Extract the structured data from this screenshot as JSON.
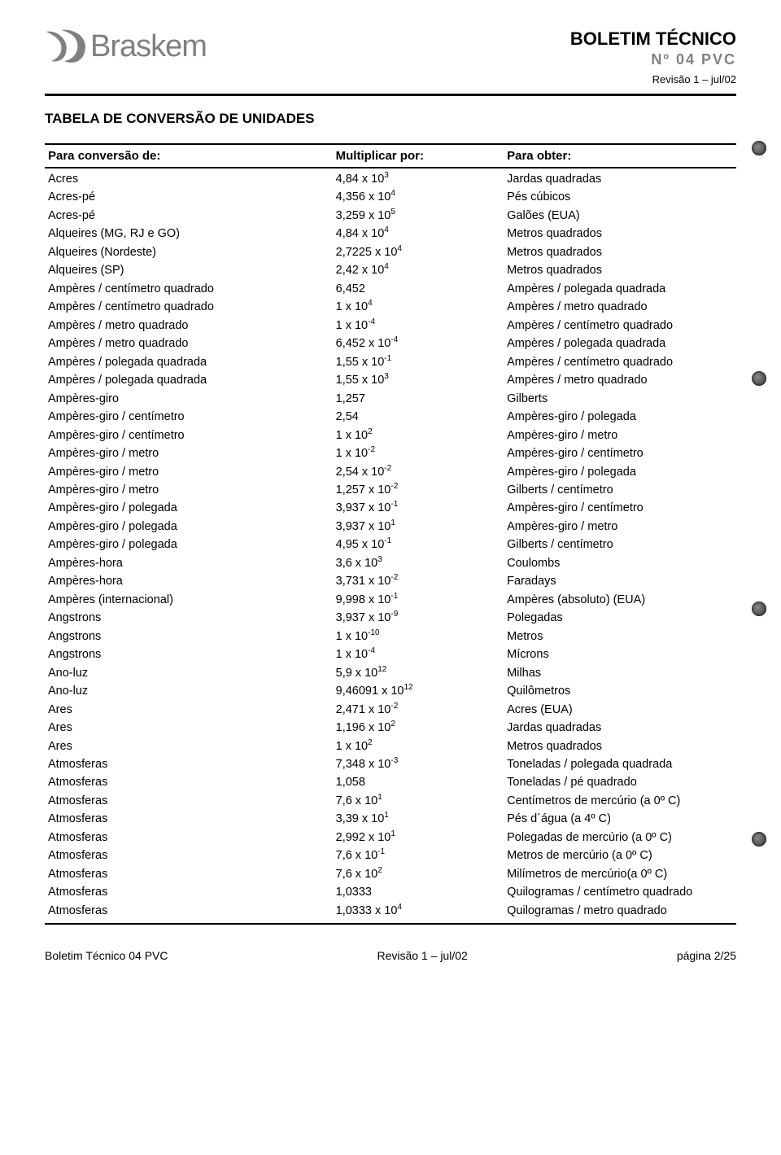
{
  "header": {
    "logo_text": "Braskem",
    "title": "BOLETIM TÉCNICO",
    "subtitle": "Nº 04 PVC",
    "revision": "Revisão 1 – jul/02"
  },
  "section_title": "TABELA DE CONVERSÃO DE UNIDADES",
  "columns": {
    "c1": "Para conversão de:",
    "c2": "Multiplicar por:",
    "c3": "Para obter:"
  },
  "rows": [
    {
      "from": "Acres",
      "mult": "4,84 x 10",
      "exp": "3",
      "to": "Jardas quadradas"
    },
    {
      "from": "Acres-pé",
      "mult": "4,356 x 10",
      "exp": "4",
      "to": "Pés cúbicos"
    },
    {
      "from": "Acres-pé",
      "mult": "3,259 x 10",
      "exp": "5",
      "to": "Galões (EUA)"
    },
    {
      "from": "Alqueires (MG, RJ e GO)",
      "mult": "4,84 x 10",
      "exp": "4",
      "to": "Metros quadrados"
    },
    {
      "from": "Alqueires (Nordeste)",
      "mult": "2,7225 x 10",
      "exp": "4",
      "to": "Metros quadrados"
    },
    {
      "from": "Alqueires (SP)",
      "mult": "2,42 x 10",
      "exp": "4",
      "to": "Metros quadrados"
    },
    {
      "from": "Ampères / centímetro quadrado",
      "mult": "6,452",
      "exp": "",
      "to": "Ampères / polegada quadrada"
    },
    {
      "from": "Ampères / centímetro quadrado",
      "mult": "1 x 10",
      "exp": "4",
      "to": "Ampères / metro quadrado"
    },
    {
      "from": "Ampères / metro quadrado",
      "mult": "1 x 10",
      "exp": "-4",
      "to": "Ampères / centímetro quadrado"
    },
    {
      "from": "Ampères / metro quadrado",
      "mult": "6,452 x 10",
      "exp": "-4",
      "to": "Ampères / polegada quadrada"
    },
    {
      "from": "Ampères / polegada quadrada",
      "mult": "1,55 x 10",
      "exp": "-1",
      "to": "Ampères / centímetro quadrado"
    },
    {
      "from": "Ampères / polegada quadrada",
      "mult": "1,55 x 10",
      "exp": "3",
      "to": "Ampères / metro quadrado"
    },
    {
      "from": "Ampères-giro",
      "mult": "1,257",
      "exp": "",
      "to": "Gilberts"
    },
    {
      "from": "Ampères-giro / centímetro",
      "mult": "2,54",
      "exp": "",
      "to": "Ampères-giro / polegada"
    },
    {
      "from": "Ampères-giro / centímetro",
      "mult": "1 x 10",
      "exp": "2",
      "to": "Ampères-giro / metro"
    },
    {
      "from": "Ampères-giro / metro",
      "mult": "1 x 10",
      "exp": "-2",
      "to": "Ampères-giro / centímetro"
    },
    {
      "from": "Ampères-giro / metro",
      "mult": "2,54 x 10",
      "exp": "-2",
      "to": "Ampères-giro / polegada"
    },
    {
      "from": "Ampères-giro / metro",
      "mult": "1,257 x 10",
      "exp": "-2",
      "to": "Gilberts / centímetro"
    },
    {
      "from": "Ampères-giro / polegada",
      "mult": "3,937 x 10",
      "exp": "-1",
      "to": "Ampères-giro / centímetro"
    },
    {
      "from": "Ampères-giro / polegada",
      "mult": "3,937 x 10",
      "exp": "1",
      "to": "Ampères-giro / metro"
    },
    {
      "from": "Ampères-giro / polegada",
      "mult": "4,95 x 10",
      "exp": "-1",
      "to": "Gilberts / centímetro"
    },
    {
      "from": "Ampères-hora",
      "mult": "3,6 x 10",
      "exp": "3",
      "to": "Coulombs"
    },
    {
      "from": "Ampères-hora",
      "mult": "3,731 x 10",
      "exp": "-2",
      "to": "Faradays"
    },
    {
      "from": "Ampères (internacional)",
      "mult": "9,998 x 10",
      "exp": "-1",
      "to": "Ampères (absoluto) (EUA)"
    },
    {
      "from": "Angstrons",
      "mult": "3,937 x 10",
      "exp": "-9",
      "to": "Polegadas"
    },
    {
      "from": "Angstrons",
      "mult": "1 x 10",
      "exp": "-10",
      "to": "Metros"
    },
    {
      "from": "Angstrons",
      "mult": "1 x 10",
      "exp": "-4",
      "to": "Mícrons"
    },
    {
      "from": "Ano-luz",
      "mult": "5,9 x 10",
      "exp": "12",
      "to": "Milhas"
    },
    {
      "from": "Ano-luz",
      "mult": "9,46091 x 10",
      "exp": "12",
      "to": "Quilômetros"
    },
    {
      "from": "Ares",
      "mult": "2,471 x 10",
      "exp": "-2",
      "to": "Acres (EUA)"
    },
    {
      "from": "Ares",
      "mult": "1,196 x 10",
      "exp": "2",
      "to": "Jardas quadradas"
    },
    {
      "from": "Ares",
      "mult": "1 x 10",
      "exp": "2",
      "to": "Metros quadrados"
    },
    {
      "from": "Atmosferas",
      "mult": "7,348 x 10",
      "exp": "-3",
      "to": "Toneladas / polegada quadrada"
    },
    {
      "from": "Atmosferas",
      "mult": "1,058",
      "exp": "",
      "to": "Toneladas / pé quadrado"
    },
    {
      "from": "Atmosferas",
      "mult": "7,6 x 10",
      "exp": "1",
      "to": "Centímetros de mercúrio (a 0º C)"
    },
    {
      "from": "Atmosferas",
      "mult": "3,39 x 10",
      "exp": "1",
      "to": "Pés d´água (a 4º C)"
    },
    {
      "from": "Atmosferas",
      "mult": "2,992 x 10",
      "exp": "1",
      "to": "Polegadas de mercúrio (a 0º C)"
    },
    {
      "from": "Atmosferas",
      "mult": "7,6 x 10",
      "exp": "-1",
      "to": "Metros de mercúrio (a 0º C)"
    },
    {
      "from": "Atmosferas",
      "mult": "7,6 x 10",
      "exp": "2",
      "to": "Milímetros de mercúrio(a 0º C)"
    },
    {
      "from": "Atmosferas",
      "mult": "1,0333",
      "exp": "",
      "to": "Quilogramas / centímetro quadrado"
    },
    {
      "from": "Atmosferas",
      "mult": "1,0333 x 10",
      "exp": "4",
      "to": "Quilogramas / metro quadrado"
    }
  ],
  "footer": {
    "left": "Boletim Técnico 04 PVC",
    "center": "Revisão 1 – jul/02",
    "right": "página 2/25"
  },
  "colors": {
    "text": "#000000",
    "gray": "#808080",
    "bg": "#ffffff"
  }
}
